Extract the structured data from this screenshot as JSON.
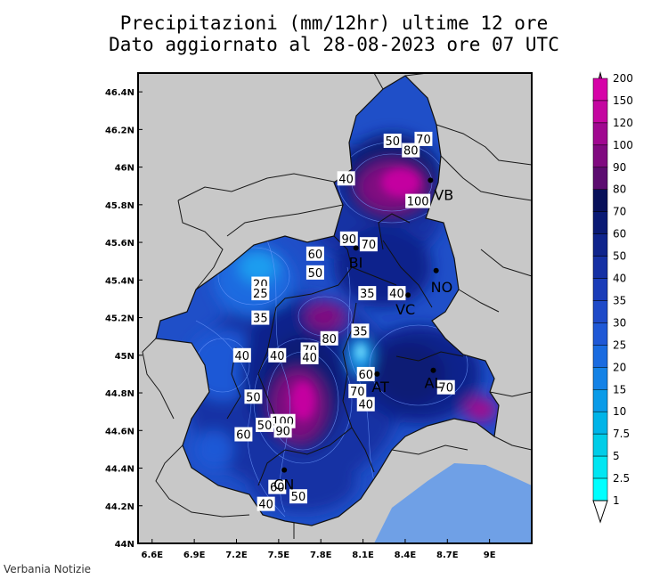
{
  "title": {
    "line1": "Precipitazioni (mm/12hr) ultime 12 ore",
    "line2": "Dato aggiornato al 28-08-2023 ore 07 UTC"
  },
  "axes": {
    "x_ticks": [
      "6.6E",
      "6.9E",
      "7.2E",
      "7.5E",
      "7.8E",
      "8.1E",
      "8.4E",
      "8.7E",
      "9E"
    ],
    "x_values": [
      6.6,
      6.9,
      7.2,
      7.5,
      7.8,
      8.1,
      8.4,
      8.7,
      9.0
    ],
    "y_ticks": [
      "46.4N",
      "46.2N",
      "46N",
      "45.8N",
      "45.6N",
      "45.4N",
      "45.2N",
      "45N",
      "44.8N",
      "44.6N",
      "44.4N",
      "44.2N",
      "44N"
    ],
    "y_values": [
      46.4,
      46.2,
      46.0,
      45.8,
      45.6,
      45.4,
      45.2,
      45.0,
      44.8,
      44.6,
      44.4,
      44.2,
      44.0
    ],
    "lon_range": [
      6.5,
      9.3
    ],
    "lat_range": [
      44.0,
      46.5
    ]
  },
  "legend": {
    "levels": [
      "1",
      "2.5",
      "5",
      "7.5",
      "10",
      "15",
      "20",
      "25",
      "30",
      "35",
      "40",
      "50",
      "60",
      "70",
      "80",
      "90",
      "100",
      "120",
      "150",
      "200"
    ],
    "colors": [
      "#00ffff",
      "#00e6f2",
      "#00cde8",
      "#00b4e8",
      "#0a9be8",
      "#1482e6",
      "#1a6be0",
      "#1f58d6",
      "#1e4ac8",
      "#1a3cb8",
      "#1530a4",
      "#0f248c",
      "#0a1a74",
      "#08105a",
      "#5c0c70",
      "#800a80",
      "#a00890",
      "#c406a0",
      "#d602a8",
      "#e000b8"
    ]
  },
  "contour_labels": [
    {
      "text": "50",
      "lon": 8.31,
      "lat": 46.14
    },
    {
      "text": "70",
      "lon": 8.53,
      "lat": 46.15
    },
    {
      "text": "80",
      "lon": 8.44,
      "lat": 46.09
    },
    {
      "text": "40",
      "lon": 7.98,
      "lat": 45.94
    },
    {
      "text": "100",
      "lon": 8.49,
      "lat": 45.82
    },
    {
      "text": "90",
      "lon": 8.0,
      "lat": 45.62
    },
    {
      "text": "70",
      "lon": 8.14,
      "lat": 45.59
    },
    {
      "text": "60",
      "lon": 7.76,
      "lat": 45.54
    },
    {
      "text": "50",
      "lon": 7.76,
      "lat": 45.44
    },
    {
      "text": "20",
      "lon": 7.37,
      "lat": 45.38
    },
    {
      "text": "25",
      "lon": 7.37,
      "lat": 45.33
    },
    {
      "text": "35",
      "lon": 8.13,
      "lat": 45.33
    },
    {
      "text": "40",
      "lon": 8.34,
      "lat": 45.33
    },
    {
      "text": "35",
      "lon": 7.37,
      "lat": 45.2
    },
    {
      "text": "80",
      "lon": 7.86,
      "lat": 45.09
    },
    {
      "text": "35",
      "lon": 8.08,
      "lat": 45.13
    },
    {
      "text": "70",
      "lon": 7.72,
      "lat": 45.03
    },
    {
      "text": "40",
      "lon": 7.24,
      "lat": 45.0
    },
    {
      "text": "40",
      "lon": 7.49,
      "lat": 45.0
    },
    {
      "text": "40",
      "lon": 7.72,
      "lat": 44.99
    },
    {
      "text": "60",
      "lon": 8.12,
      "lat": 44.9
    },
    {
      "text": "70",
      "lon": 8.06,
      "lat": 44.81
    },
    {
      "text": "70",
      "lon": 8.69,
      "lat": 44.83
    },
    {
      "text": "50",
      "lon": 7.32,
      "lat": 44.78
    },
    {
      "text": "40",
      "lon": 8.12,
      "lat": 44.74
    },
    {
      "text": "100",
      "lon": 7.53,
      "lat": 44.65
    },
    {
      "text": "90",
      "lon": 7.53,
      "lat": 44.6
    },
    {
      "text": "50",
      "lon": 7.4,
      "lat": 44.63
    },
    {
      "text": "60",
      "lon": 7.25,
      "lat": 44.58
    },
    {
      "text": "60",
      "lon": 7.49,
      "lat": 44.3
    },
    {
      "text": "50",
      "lon": 7.64,
      "lat": 44.25
    },
    {
      "text": "40",
      "lon": 7.41,
      "lat": 44.21
    }
  ],
  "cities": [
    {
      "code": "VB",
      "lon": 8.58,
      "lat": 45.93,
      "dx": 4,
      "dy": 22
    },
    {
      "code": "BI",
      "lon": 8.05,
      "lat": 45.57,
      "dx": -8,
      "dy": 22
    },
    {
      "code": "NO",
      "lon": 8.62,
      "lat": 45.45,
      "dx": -6,
      "dy": 24
    },
    {
      "code": "VC",
      "lon": 8.42,
      "lat": 45.32,
      "dx": -14,
      "dy": 22
    },
    {
      "code": "AT",
      "lon": 8.2,
      "lat": 44.9,
      "dx": -6,
      "dy": 20
    },
    {
      "code": "AL",
      "lon": 8.6,
      "lat": 44.92,
      "dx": -10,
      "dy": 20
    },
    {
      "code": "CN",
      "lon": 7.54,
      "lat": 44.39,
      "dx": -12,
      "dy": 22
    }
  ],
  "credit": "Verbania Notizie",
  "colors": {
    "outside": "#c8c8c8",
    "sea": "#6fa0e6",
    "base": "#1f4fc8"
  }
}
